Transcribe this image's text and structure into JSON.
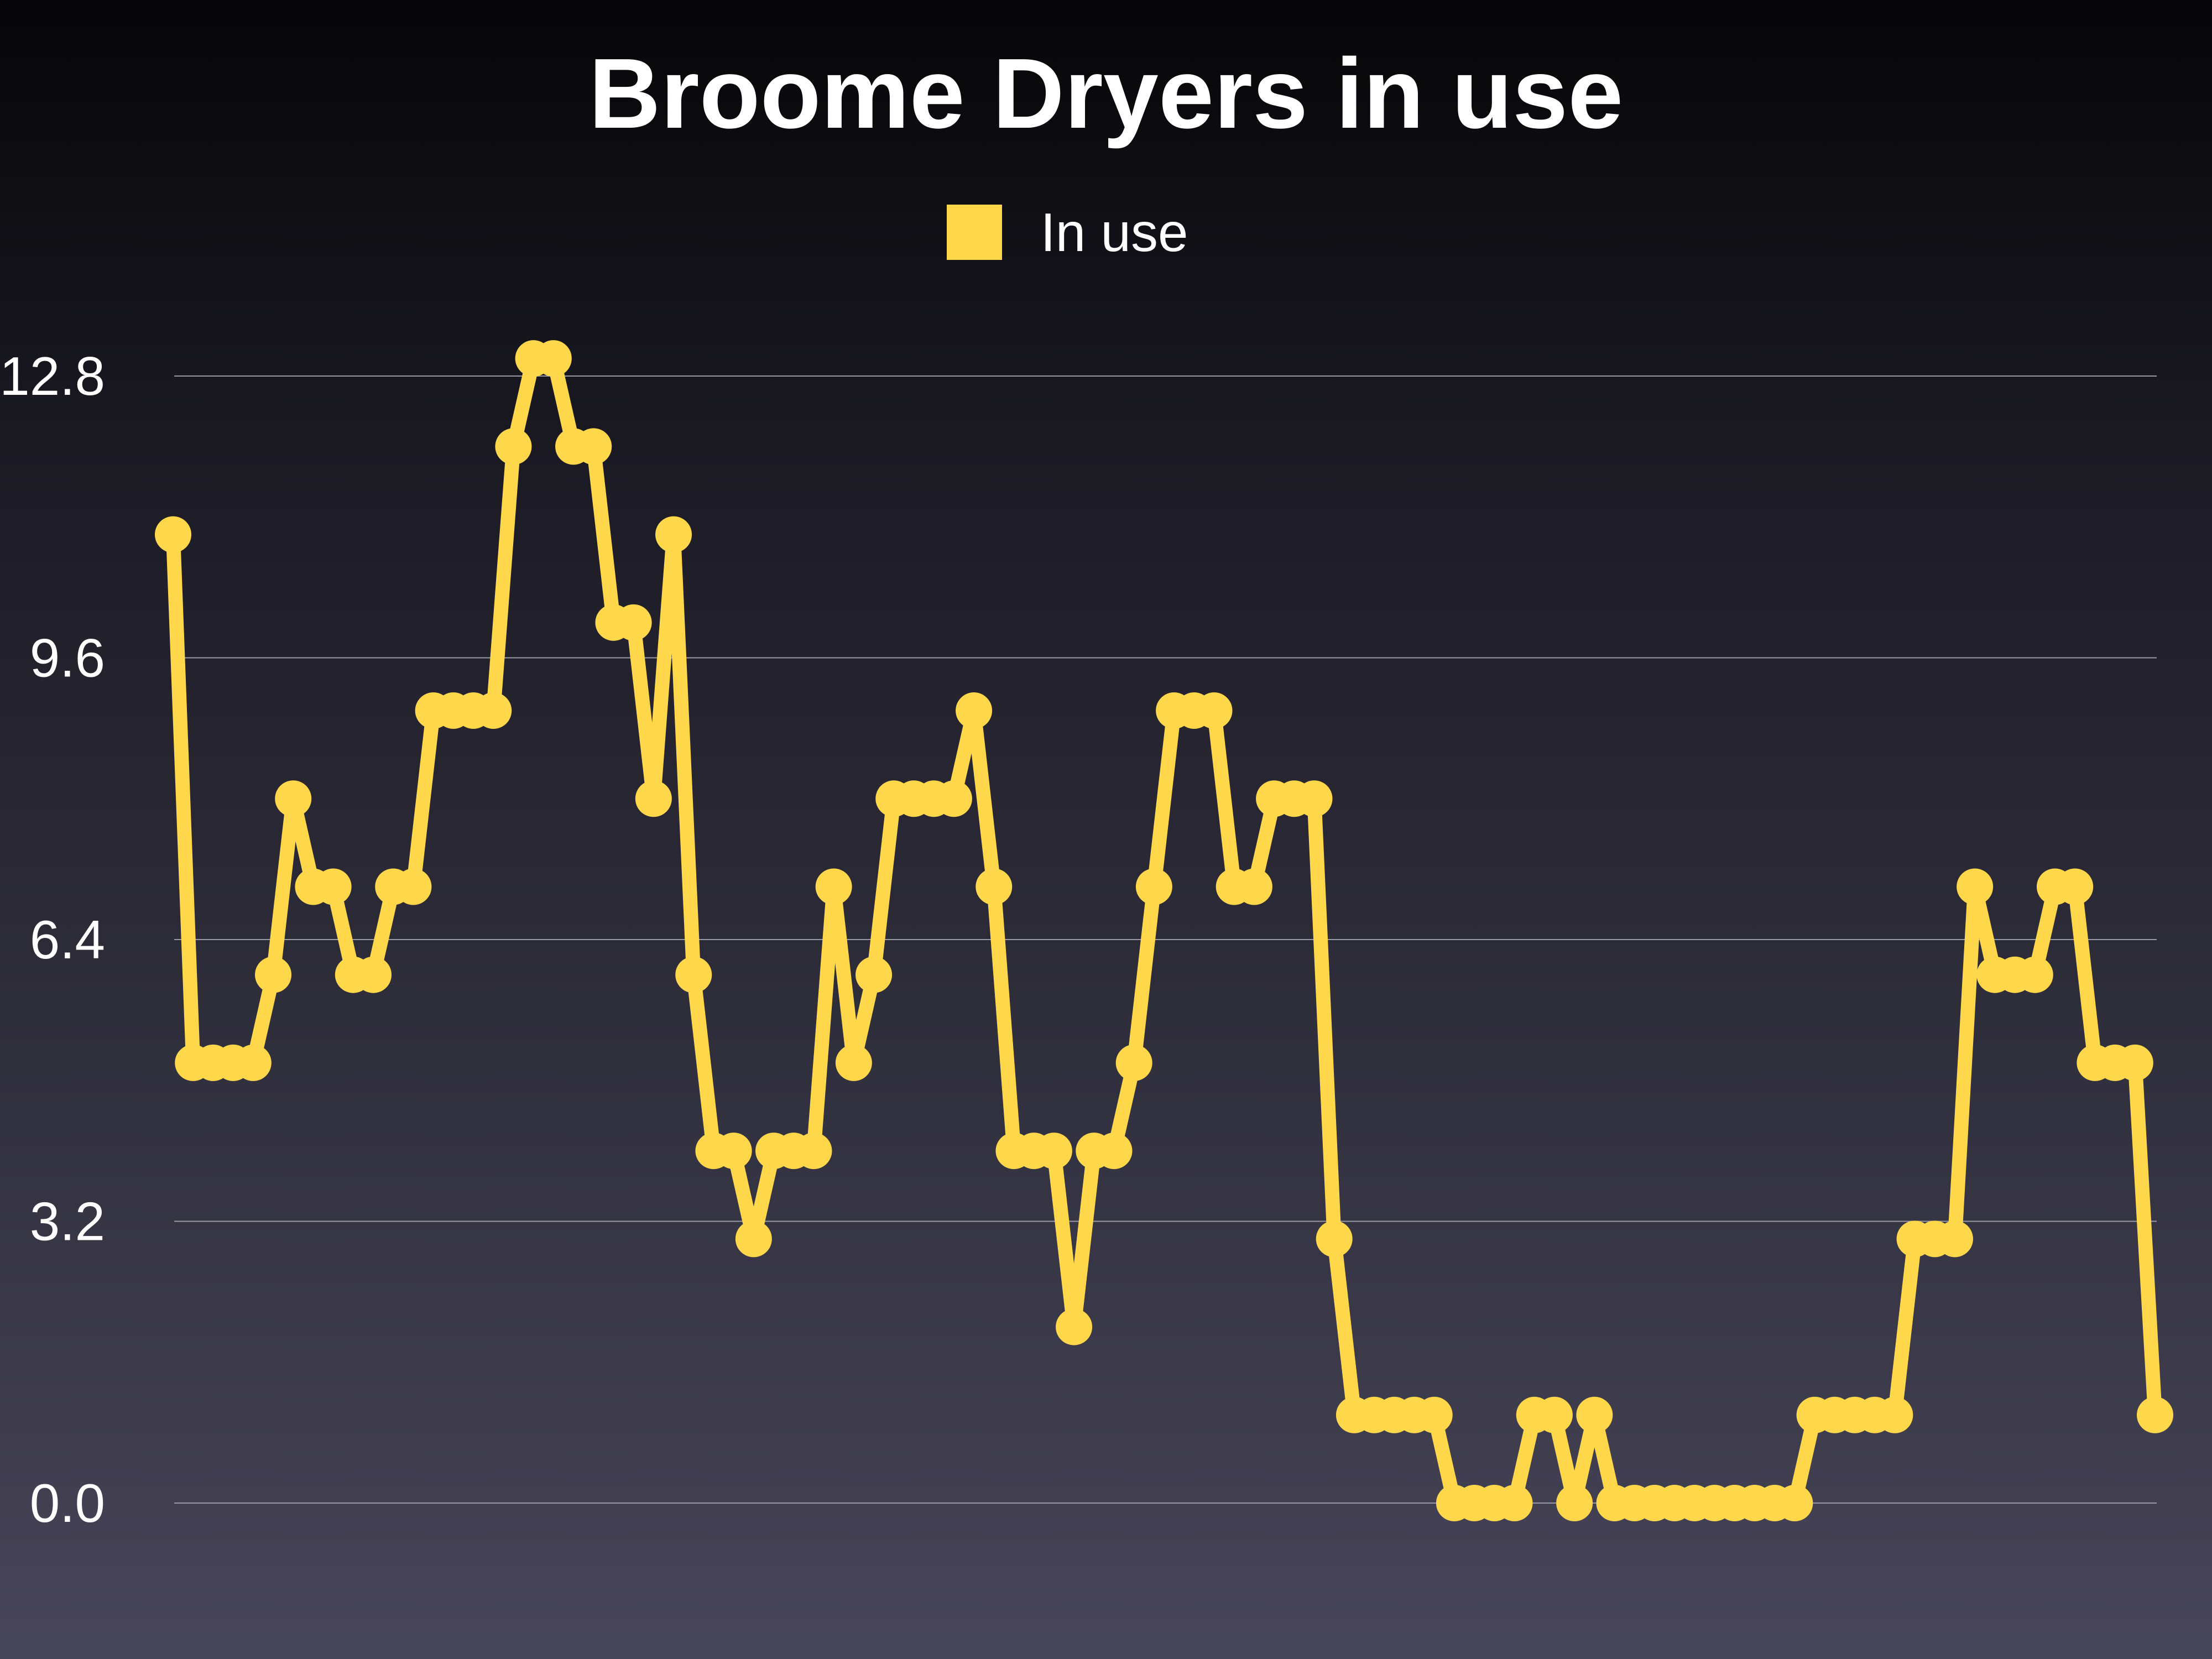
{
  "chart_data": {
    "type": "line",
    "title": "Broome Dryers in use",
    "xlabel": "",
    "ylabel": "",
    "ylim": [
      0,
      12.8
    ],
    "yticks": [
      "0.0",
      "3.2",
      "6.4",
      "9.6",
      "12.8"
    ],
    "grid": true,
    "legend_position": "top-center",
    "series": [
      {
        "name": "In use",
        "color": "#fed84a",
        "values": [
          11,
          5,
          5,
          5,
          5,
          6,
          8,
          7,
          7,
          6,
          6,
          7,
          7,
          9,
          9,
          9,
          9,
          12,
          13,
          13,
          12,
          12,
          10,
          10,
          8,
          11,
          6,
          4,
          4,
          3,
          4,
          4,
          4,
          7,
          5,
          6,
          8,
          8,
          8,
          8,
          9,
          7,
          4,
          4,
          4,
          2,
          4,
          4,
          5,
          7,
          9,
          9,
          9,
          7,
          7,
          8,
          8,
          8,
          3,
          1,
          1,
          1,
          1,
          1,
          0,
          0,
          0,
          0,
          1,
          1,
          0,
          1,
          0,
          0,
          0,
          0,
          0,
          0,
          0,
          0,
          0,
          0,
          1,
          1,
          1,
          1,
          1,
          3,
          3,
          3,
          7,
          6,
          6,
          6,
          7,
          7,
          5,
          5,
          5,
          1
        ]
      }
    ]
  }
}
